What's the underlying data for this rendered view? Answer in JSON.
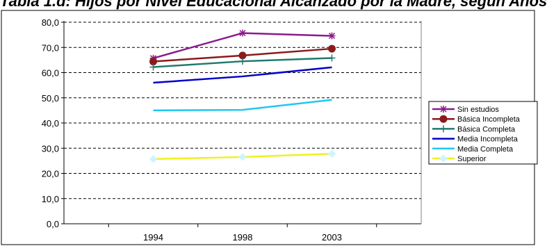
{
  "title": "Tabla 1.d: Hijos por Nivel Educacional Alcanzado por la Madre, según Años",
  "chart_data": {
    "type": "line",
    "title": "Tabla 1.d: Hijos por Nivel Educacional Alcanzado por la Madre, según Años",
    "x": [
      "1994",
      "1998",
      "2003"
    ],
    "ylim": [
      0,
      80
    ],
    "yticks": [
      "0,0",
      "10,0",
      "20,0",
      "30,0",
      "40,0",
      "50,0",
      "60,0",
      "70,0",
      "80,0"
    ],
    "grid": "horizontal dashed",
    "legend_position": "right",
    "series": [
      {
        "name": "Sin estudios",
        "values": [
          65.7,
          75.7,
          74.6
        ],
        "color": "#8B1A8B",
        "marker": "asterisk"
      },
      {
        "name": "Básica Incompleta",
        "values": [
          64.4,
          66.8,
          69.5
        ],
        "color": "#8B1A1A",
        "marker": "circle"
      },
      {
        "name": "Básica Completa",
        "values": [
          62.2,
          64.5,
          65.8
        ],
        "color": "#1F7A6E",
        "marker": "plus"
      },
      {
        "name": "Media Incompleta",
        "values": [
          56.0,
          58.5,
          62.1
        ],
        "color": "#0000CC",
        "marker": "none"
      },
      {
        "name": "Media Completa",
        "values": [
          45.0,
          45.2,
          49.2
        ],
        "color": "#1EC8F0",
        "marker": "none"
      },
      {
        "name": "Superior",
        "values": [
          25.7,
          26.5,
          27.8
        ],
        "color": "#F0F020",
        "marker": "diamond"
      }
    ]
  }
}
